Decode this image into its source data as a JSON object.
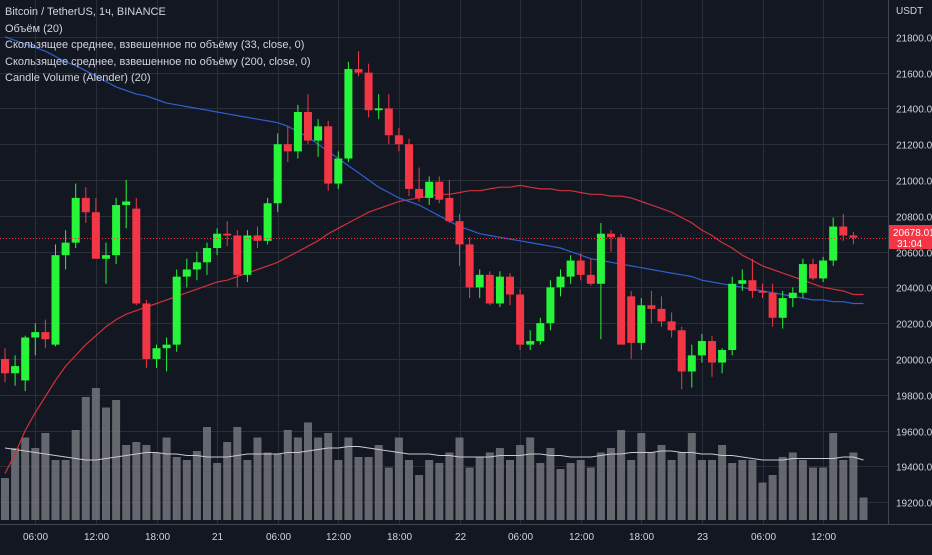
{
  "legend": {
    "title": "Bitcoin / TetherUS, 1ч, BINANCE",
    "line1": "Объём (20)",
    "line2": "Скользящее среднее, взвешенное по объёму (33, close, 0)",
    "line3": "Скользящее среднее, взвешенное по объёму (200, close, 0)",
    "line4": "Candle Volume (Alender) (20)"
  },
  "price_axis": {
    "currency": "USDT",
    "ticks": [
      "21800.00",
      "21600.00",
      "21400.00",
      "21200.00",
      "21000.00",
      "20800.00",
      "20600.00",
      "20400.00",
      "20200.00",
      "20000.00",
      "19800.00",
      "19600.00",
      "19400.00",
      "19200.00"
    ],
    "last_price": "20678.01",
    "countdown": "31:04"
  },
  "time_axis": {
    "ticks": [
      "06:00",
      "12:00",
      "18:00",
      "21",
      "06:00",
      "12:00",
      "18:00",
      "22",
      "06:00",
      "12:00",
      "18:00",
      "23",
      "06:00",
      "12:00"
    ]
  },
  "colors": {
    "background": "#131722",
    "grid": "#2a2e39",
    "up": "#26f53a",
    "down": "#f23645",
    "vwma_fast": "#d0313a",
    "vwma_slow": "#2f5fd0",
    "volume": "#7a7c82",
    "volume_ma": "#c8cacd"
  },
  "chart_data": {
    "type": "candlestick",
    "interval": "1h",
    "y_range": [
      19100,
      21950
    ],
    "candles": [
      {
        "o": 20000,
        "h": 20060,
        "l": 19870,
        "c": 19920
      },
      {
        "o": 19920,
        "h": 20020,
        "l": 19850,
        "c": 19960
      },
      {
        "o": 19880,
        "h": 20130,
        "l": 19820,
        "c": 20120
      },
      {
        "o": 20120,
        "h": 20200,
        "l": 20020,
        "c": 20150
      },
      {
        "o": 20150,
        "h": 20220,
        "l": 20060,
        "c": 20110
      },
      {
        "o": 20080,
        "h": 20640,
        "l": 20070,
        "c": 20580
      },
      {
        "o": 20580,
        "h": 20720,
        "l": 20500,
        "c": 20650
      },
      {
        "o": 20650,
        "h": 20980,
        "l": 20620,
        "c": 20900
      },
      {
        "o": 20900,
        "h": 20960,
        "l": 20760,
        "c": 20820
      },
      {
        "o": 20820,
        "h": 20900,
        "l": 20580,
        "c": 20560
      },
      {
        "o": 20560,
        "h": 20650,
        "l": 20420,
        "c": 20580
      },
      {
        "o": 20580,
        "h": 20900,
        "l": 20530,
        "c": 20860
      },
      {
        "o": 20860,
        "h": 21000,
        "l": 20730,
        "c": 20880
      },
      {
        "o": 20840,
        "h": 20900,
        "l": 20300,
        "c": 20310
      },
      {
        "o": 20310,
        "h": 20330,
        "l": 19950,
        "c": 20000
      },
      {
        "o": 20000,
        "h": 20080,
        "l": 19950,
        "c": 20060
      },
      {
        "o": 20060,
        "h": 20120,
        "l": 19930,
        "c": 20080
      },
      {
        "o": 20080,
        "h": 20500,
        "l": 20040,
        "c": 20460
      },
      {
        "o": 20460,
        "h": 20560,
        "l": 20400,
        "c": 20500
      },
      {
        "o": 20500,
        "h": 20600,
        "l": 20440,
        "c": 20540
      },
      {
        "o": 20540,
        "h": 20650,
        "l": 20470,
        "c": 20620
      },
      {
        "o": 20620,
        "h": 20730,
        "l": 20580,
        "c": 20700
      },
      {
        "o": 20700,
        "h": 20770,
        "l": 20630,
        "c": 20690
      },
      {
        "o": 20690,
        "h": 20720,
        "l": 20400,
        "c": 20470
      },
      {
        "o": 20470,
        "h": 20720,
        "l": 20430,
        "c": 20690
      },
      {
        "o": 20690,
        "h": 20740,
        "l": 20620,
        "c": 20660
      },
      {
        "o": 20660,
        "h": 20900,
        "l": 20640,
        "c": 20870
      },
      {
        "o": 20870,
        "h": 21260,
        "l": 20820,
        "c": 21200
      },
      {
        "o": 21200,
        "h": 21300,
        "l": 21100,
        "c": 21160
      },
      {
        "o": 21160,
        "h": 21420,
        "l": 21120,
        "c": 21380
      },
      {
        "o": 21380,
        "h": 21480,
        "l": 21200,
        "c": 21220
      },
      {
        "o": 21220,
        "h": 21340,
        "l": 21130,
        "c": 21300
      },
      {
        "o": 21300,
        "h": 21330,
        "l": 20940,
        "c": 20980
      },
      {
        "o": 20980,
        "h": 21160,
        "l": 20950,
        "c": 21120
      },
      {
        "o": 21120,
        "h": 21660,
        "l": 21100,
        "c": 21620
      },
      {
        "o": 21620,
        "h": 21720,
        "l": 21580,
        "c": 21600
      },
      {
        "o": 21600,
        "h": 21650,
        "l": 21350,
        "c": 21390
      },
      {
        "o": 21390,
        "h": 21480,
        "l": 21340,
        "c": 21400
      },
      {
        "o": 21400,
        "h": 21480,
        "l": 21200,
        "c": 21250
      },
      {
        "o": 21250,
        "h": 21290,
        "l": 21160,
        "c": 21200
      },
      {
        "o": 21200,
        "h": 21230,
        "l": 20910,
        "c": 20950
      },
      {
        "o": 20950,
        "h": 21070,
        "l": 20880,
        "c": 20900
      },
      {
        "o": 20900,
        "h": 21020,
        "l": 20860,
        "c": 20990
      },
      {
        "o": 20990,
        "h": 21020,
        "l": 20870,
        "c": 20890
      },
      {
        "o": 20900,
        "h": 21000,
        "l": 20760,
        "c": 20770
      },
      {
        "o": 20770,
        "h": 20810,
        "l": 20520,
        "c": 20640
      },
      {
        "o": 20640,
        "h": 20680,
        "l": 20340,
        "c": 20400
      },
      {
        "o": 20400,
        "h": 20500,
        "l": 20340,
        "c": 20470
      },
      {
        "o": 20470,
        "h": 20490,
        "l": 20300,
        "c": 20310
      },
      {
        "o": 20310,
        "h": 20490,
        "l": 20290,
        "c": 20460
      },
      {
        "o": 20460,
        "h": 20480,
        "l": 20300,
        "c": 20360
      },
      {
        "o": 20360,
        "h": 20390,
        "l": 20050,
        "c": 20080
      },
      {
        "o": 20080,
        "h": 20160,
        "l": 20050,
        "c": 20100
      },
      {
        "o": 20100,
        "h": 20230,
        "l": 20080,
        "c": 20200
      },
      {
        "o": 20200,
        "h": 20440,
        "l": 20160,
        "c": 20400
      },
      {
        "o": 20400,
        "h": 20500,
        "l": 20350,
        "c": 20460
      },
      {
        "o": 20460,
        "h": 20580,
        "l": 20420,
        "c": 20550
      },
      {
        "o": 20550,
        "h": 20590,
        "l": 20440,
        "c": 20470
      },
      {
        "o": 20470,
        "h": 20560,
        "l": 20410,
        "c": 20420
      },
      {
        "o": 20420,
        "h": 20760,
        "l": 20110,
        "c": 20700
      },
      {
        "o": 20700,
        "h": 20720,
        "l": 20600,
        "c": 20680
      },
      {
        "o": 20680,
        "h": 20700,
        "l": 20080,
        "c": 20080
      },
      {
        "o": 20350,
        "h": 20380,
        "l": 20000,
        "c": 20090
      },
      {
        "o": 20090,
        "h": 20340,
        "l": 20050,
        "c": 20300
      },
      {
        "o": 20300,
        "h": 20380,
        "l": 20200,
        "c": 20280
      },
      {
        "o": 20280,
        "h": 20350,
        "l": 20180,
        "c": 20210
      },
      {
        "o": 20210,
        "h": 20260,
        "l": 20120,
        "c": 20160
      },
      {
        "o": 20160,
        "h": 20180,
        "l": 19830,
        "c": 19930
      },
      {
        "o": 19930,
        "h": 20080,
        "l": 19840,
        "c": 20020
      },
      {
        "o": 20020,
        "h": 20140,
        "l": 19980,
        "c": 20100
      },
      {
        "o": 20100,
        "h": 20130,
        "l": 19900,
        "c": 19980
      },
      {
        "o": 19980,
        "h": 20060,
        "l": 19920,
        "c": 20050
      },
      {
        "o": 20050,
        "h": 20460,
        "l": 20020,
        "c": 20420
      },
      {
        "o": 20420,
        "h": 20500,
        "l": 20380,
        "c": 20440
      },
      {
        "o": 20440,
        "h": 20560,
        "l": 20340,
        "c": 20380
      },
      {
        "o": 20380,
        "h": 20420,
        "l": 20340,
        "c": 20370
      },
      {
        "o": 20370,
        "h": 20420,
        "l": 20180,
        "c": 20230
      },
      {
        "o": 20230,
        "h": 20380,
        "l": 20170,
        "c": 20340
      },
      {
        "o": 20340,
        "h": 20400,
        "l": 20290,
        "c": 20370
      },
      {
        "o": 20370,
        "h": 20560,
        "l": 20340,
        "c": 20530
      },
      {
        "o": 20530,
        "h": 20560,
        "l": 20440,
        "c": 20450
      },
      {
        "o": 20450,
        "h": 20570,
        "l": 20430,
        "c": 20550
      },
      {
        "o": 20550,
        "h": 20790,
        "l": 20520,
        "c": 20740
      },
      {
        "o": 20740,
        "h": 20810,
        "l": 20660,
        "c": 20690
      },
      {
        "o": 20690,
        "h": 20710,
        "l": 20640,
        "c": 20678
      }
    ],
    "volume": [
      28,
      48,
      55,
      48,
      58,
      40,
      40,
      60,
      82,
      88,
      75,
      80,
      50,
      52,
      50,
      45,
      55,
      42,
      40,
      46,
      62,
      38,
      52,
      62,
      40,
      55,
      45,
      44,
      60,
      55,
      65,
      55,
      58,
      40,
      55,
      42,
      42,
      50,
      35,
      55,
      40,
      30,
      40,
      38,
      45,
      55,
      35,
      42,
      45,
      48,
      40,
      50,
      55,
      38,
      48,
      34,
      38,
      40,
      35,
      45,
      48,
      60,
      40,
      58,
      45,
      50,
      40,
      45,
      58,
      40,
      40,
      50,
      38,
      40,
      40,
      25,
      30,
      42,
      45,
      40,
      35,
      35,
      58,
      40,
      45,
      15
    ],
    "volume_ma": [
      48,
      47,
      46,
      45,
      44,
      43,
      42,
      41,
      40,
      40,
      41,
      42,
      43,
      44,
      45,
      45,
      44,
      44,
      43,
      43,
      42,
      42,
      42,
      43,
      44,
      44,
      44,
      44,
      45,
      45,
      46,
      47,
      48,
      48,
      49,
      49,
      48,
      47,
      46,
      45,
      44,
      44,
      44,
      43,
      43,
      42,
      42,
      42,
      42,
      43,
      43,
      43,
      44,
      44,
      43,
      43,
      42,
      42,
      42,
      43,
      44,
      44,
      45,
      45,
      45,
      46,
      46,
      45,
      45,
      44,
      44,
      43,
      43,
      42,
      41,
      40,
      40,
      40,
      41,
      41,
      41,
      41,
      41,
      42,
      42,
      40
    ],
    "vwma_fast": [
      19360,
      19470,
      19600,
      19700,
      19790,
      19880,
      19960,
      20020,
      20080,
      20130,
      20180,
      20220,
      20250,
      20270,
      20290,
      20310,
      20330,
      20350,
      20370,
      20390,
      20410,
      20430,
      20440,
      20460,
      20480,
      20500,
      20520,
      20540,
      20570,
      20600,
      20630,
      20660,
      20700,
      20730,
      20760,
      20790,
      20820,
      20840,
      20860,
      20880,
      20890,
      20900,
      20910,
      20920,
      20920,
      20930,
      20940,
      20940,
      20950,
      20960,
      20960,
      20970,
      20960,
      20950,
      20950,
      20940,
      20940,
      20930,
      20920,
      20920,
      20910,
      20910,
      20900,
      20880,
      20860,
      20840,
      20820,
      20790,
      20760,
      20720,
      20690,
      20650,
      20620,
      20580,
      20550,
      20520,
      20500,
      20480,
      20460,
      20440,
      20420,
      20400,
      20390,
      20380,
      20360,
      20360
    ],
    "vwma_slow": [
      21800,
      21780,
      21760,
      21740,
      21720,
      21690,
      21660,
      21640,
      21610,
      21580,
      21550,
      21520,
      21500,
      21480,
      21470,
      21450,
      21430,
      21420,
      21410,
      21400,
      21390,
      21380,
      21370,
      21360,
      21350,
      21340,
      21330,
      21320,
      21300,
      21270,
      21240,
      21200,
      21160,
      21120,
      21080,
      21040,
      21000,
      20960,
      20930,
      20900,
      20880,
      20860,
      20830,
      20800,
      20770,
      20740,
      20720,
      20700,
      20690,
      20680,
      20670,
      20660,
      20650,
      20640,
      20630,
      20620,
      20600,
      20580,
      20560,
      20550,
      20540,
      20530,
      20520,
      20510,
      20500,
      20490,
      20480,
      20470,
      20460,
      20440,
      20430,
      20420,
      20410,
      20400,
      20390,
      20380,
      20370,
      20360,
      20350,
      20340,
      20330,
      20330,
      20320,
      20320,
      20310,
      20310
    ]
  }
}
